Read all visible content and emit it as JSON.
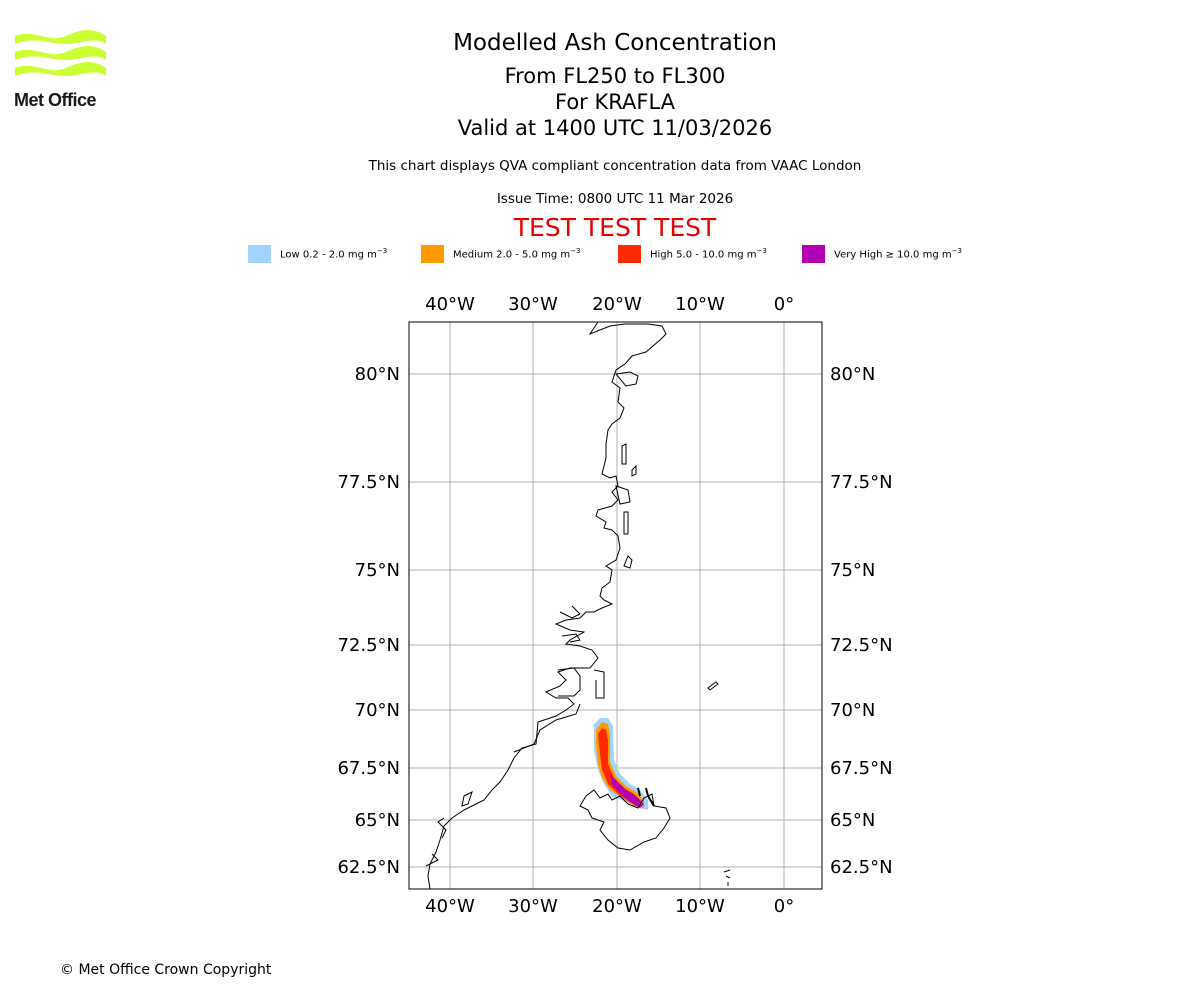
{
  "brand": {
    "name": "Met Office",
    "logo_color": "#ccff33"
  },
  "title": {
    "line1": "Modelled Ash Concentration",
    "line2": "From FL250 to FL300",
    "line3": "For KRAFLA",
    "line4": "Valid at 1400 UTC 11/03/2026"
  },
  "subtitle": {
    "description": "This chart displays QVA compliant concentration data from VAAC London",
    "issue_time": "Issue Time: 0800 UTC 11 Mar 2026"
  },
  "test_banner": "TEST TEST TEST",
  "legend": [
    {
      "label": "Low 0.2 - 2.0 mg m",
      "sup": "−3",
      "color": "#a3d4ff"
    },
    {
      "label": "Medium 2.0 - 5.0 mg m",
      "sup": "−3",
      "color": "#ff9900"
    },
    {
      "label": "High 5.0 - 10.0 mg m",
      "sup": "−3",
      "color": "#ff2a00"
    },
    {
      "label": "Very High  ≥  10.0 mg m",
      "sup": "−3",
      "color": "#b300b3"
    }
  ],
  "map": {
    "lon_labels": [
      "40°W",
      "30°W",
      "20°W",
      "10°W",
      "0°"
    ],
    "lat_labels": [
      "80°N",
      "77.5°N",
      "75°N",
      "72.5°N",
      "70°N",
      "67.5°N",
      "65°N",
      "62.5°N"
    ],
    "gridline_color": "#b0b0b0"
  },
  "copyright": "© Met Office Crown Copyright"
}
